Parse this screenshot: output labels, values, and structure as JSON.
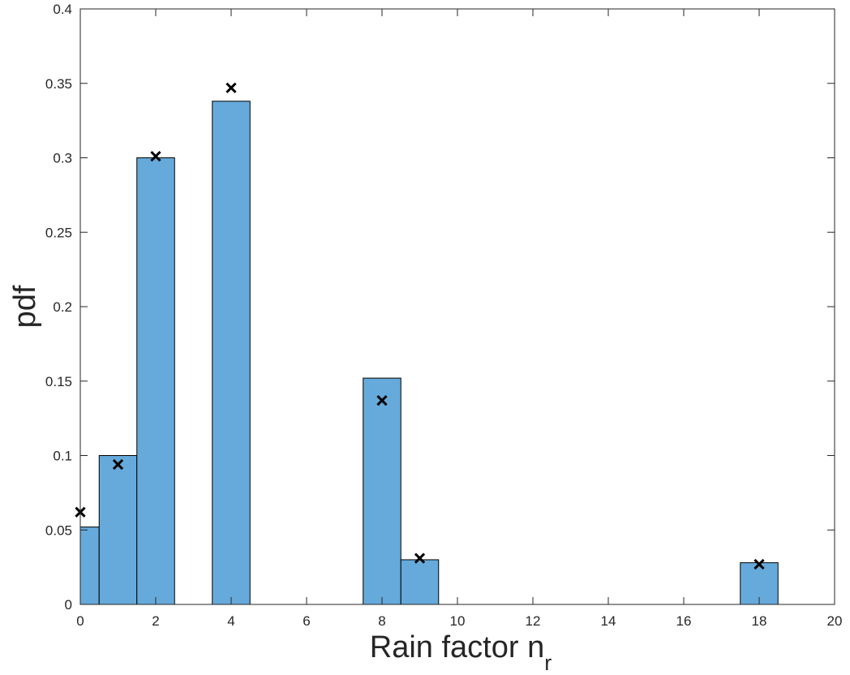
{
  "chart_data": {
    "type": "bar",
    "xlabel": "Rain factor n",
    "xlabel_subscript": "r",
    "ylabel": "pdf",
    "xlim": [
      0,
      20
    ],
    "ylim": [
      0,
      0.4
    ],
    "xticks": [
      0,
      2,
      4,
      6,
      8,
      10,
      12,
      14,
      16,
      18,
      20
    ],
    "yticks": [
      0,
      0.05,
      0.1,
      0.15,
      0.2,
      0.25,
      0.3,
      0.35,
      0.4
    ],
    "ytick_labels": [
      "0",
      "0.05",
      "0.1",
      "0.15",
      "0.2",
      "0.25",
      "0.3",
      "0.35",
      "0.4"
    ],
    "bar_width": 1,
    "grid": false,
    "bars": {
      "x": [
        0,
        1,
        2,
        4,
        8,
        9,
        18
      ],
      "values": [
        0.052,
        0.1,
        0.3,
        0.338,
        0.152,
        0.03,
        0.028
      ]
    },
    "markers": {
      "x": [
        0,
        1,
        2,
        4,
        8,
        9,
        18
      ],
      "values": [
        0.062,
        0.094,
        0.301,
        0.347,
        0.137,
        0.031,
        0.027
      ]
    },
    "colors": {
      "bar_fill": "#66AADB",
      "bar_edge": "#000000",
      "marker": "#000000",
      "axis": "#262626"
    }
  }
}
